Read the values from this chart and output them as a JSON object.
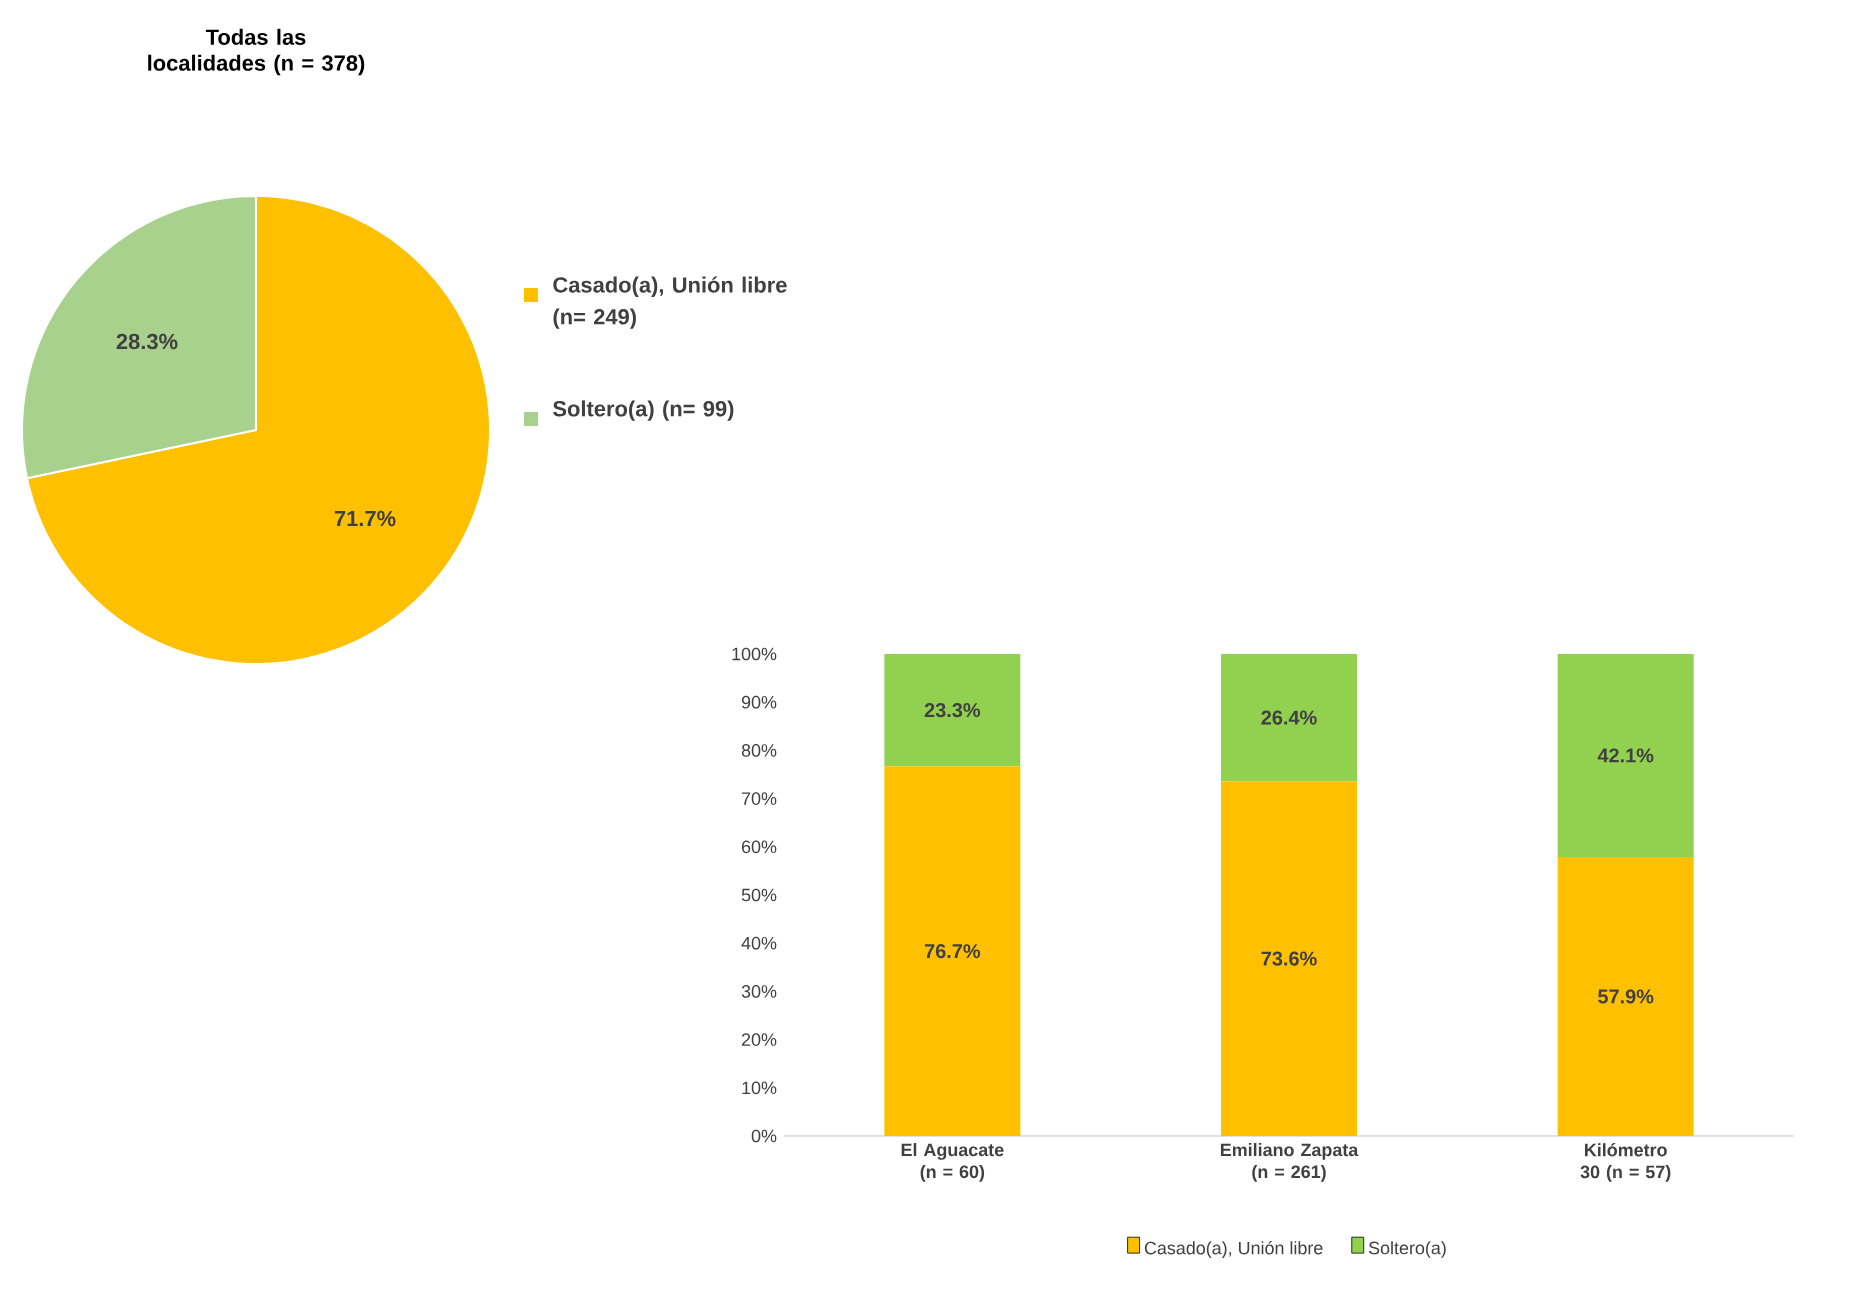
{
  "chart_data": [
    {
      "type": "pie",
      "title": "Todas las localidades (n = 378)",
      "categories": [
        "Casado(a), Unión libre (n= 249)",
        "Soltero(a) (n= 99)"
      ],
      "values": [
        71.7,
        28.3
      ],
      "colors": [
        "#ffc000",
        "#a9d18e"
      ],
      "value_labels": [
        "71.7%",
        "28.3%"
      ],
      "legend": "right"
    },
    {
      "type": "bar",
      "stacked": true,
      "categories": [
        "El Aguacate (n = 60)",
        "Emiliano Zapata (n = 261)",
        "Kilómetro 30 (n = 57)"
      ],
      "series": [
        {
          "name": "Casado(a), Unión libre",
          "color": "#ffc000",
          "values": [
            76.7,
            73.6,
            57.9
          ],
          "value_labels": [
            "76.7%",
            "73.6%",
            "57.9%"
          ]
        },
        {
          "name": "Soltero(a)",
          "color": "#92d050",
          "values": [
            23.3,
            26.4,
            42.1
          ],
          "value_labels": [
            "23.3%",
            "26.4%",
            "42.1%"
          ]
        }
      ],
      "ylim": [
        0,
        100
      ],
      "yticks": [
        {
          "value": 0,
          "label": "0%"
        },
        {
          "value": 10,
          "label": "10%"
        },
        {
          "value": 20,
          "label": "20%"
        },
        {
          "value": 30,
          "label": "30%"
        },
        {
          "value": 40,
          "label": "40%"
        },
        {
          "value": 50,
          "label": "50%"
        },
        {
          "value": 60,
          "label": "60%"
        },
        {
          "value": 70,
          "label": "70%"
        },
        {
          "value": 80,
          "label": "80%"
        },
        {
          "value": 90,
          "label": "90%"
        },
        {
          "value": 100,
          "label": "100%"
        }
      ],
      "legend": "bottom",
      "grid": false
    }
  ]
}
